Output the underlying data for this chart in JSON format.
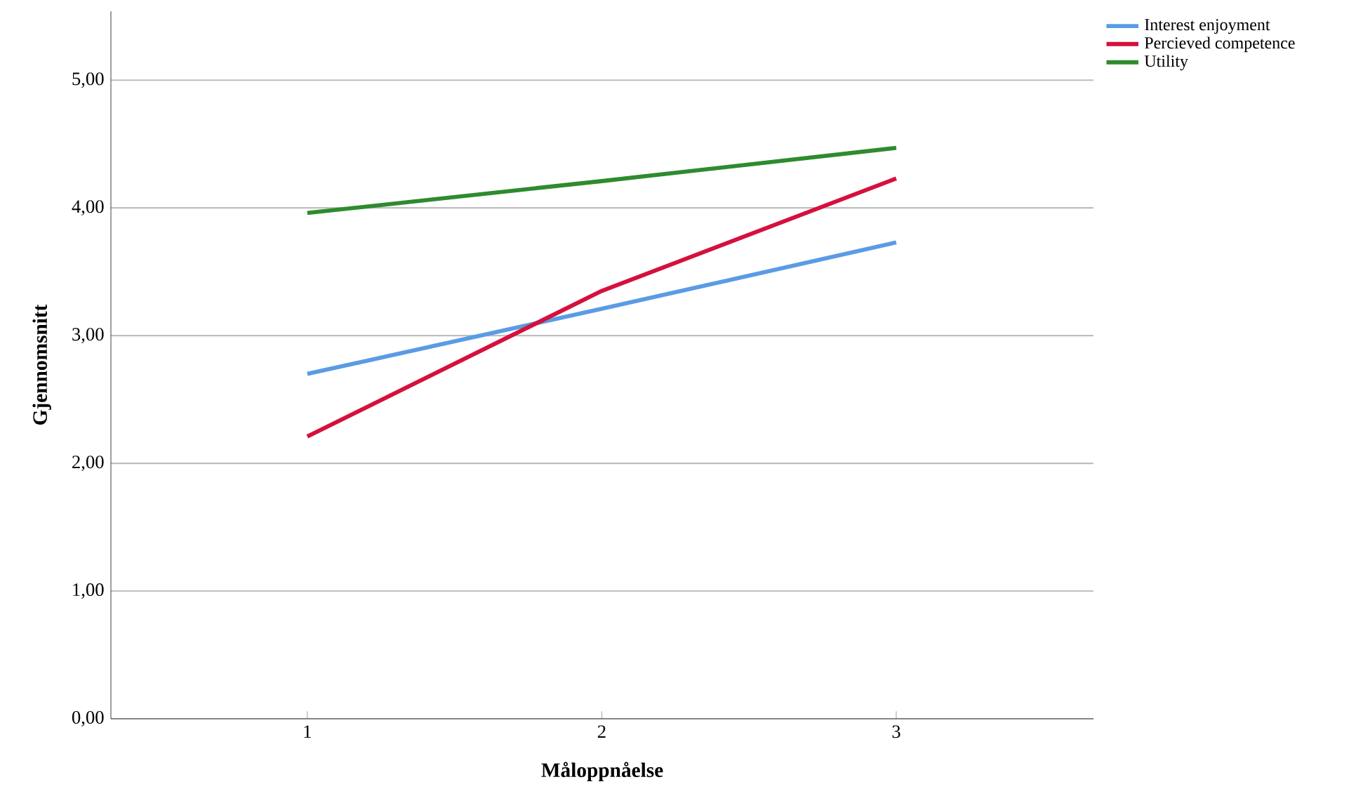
{
  "chart_data": {
    "type": "line",
    "xlabel": "Måloppnåelse",
    "ylabel": "Gjennomsnitt",
    "categories": [
      "1",
      "2",
      "3"
    ],
    "series": [
      {
        "name": "Interest enjoyment",
        "color": "#5a9be6",
        "values": [
          2.7,
          3.21,
          3.73
        ]
      },
      {
        "name": "Percieved competence",
        "color": "#d5103c",
        "values": [
          2.21,
          3.35,
          4.23
        ]
      },
      {
        "name": "Utility",
        "color": "#2e8b2e",
        "values": [
          3.96,
          4.21,
          4.47
        ]
      }
    ],
    "ylim": [
      0,
      5.54
    ],
    "yticks": [
      {
        "value": 0,
        "label": "0,00"
      },
      {
        "value": 1,
        "label": "1,00"
      },
      {
        "value": 2,
        "label": "2,00"
      },
      {
        "value": 3,
        "label": "3,00"
      },
      {
        "value": 4,
        "label": "4,00"
      },
      {
        "value": 5,
        "label": "5,00"
      }
    ],
    "grid": "y",
    "legend": "top right",
    "marker": "none",
    "line_style": "solid"
  }
}
